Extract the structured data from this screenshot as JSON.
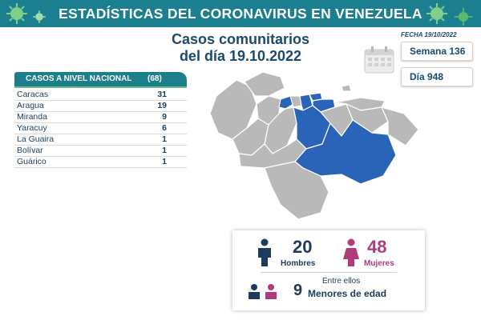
{
  "header": {
    "title": "ESTADÍSTICAS DEL CORONAVIRUS EN VENEZUELA"
  },
  "subtitle": {
    "line1": "Casos comunitarios",
    "line2": "del día 19.10.2022"
  },
  "fecha": "FECHA 19/10/2022",
  "semana": "Semana 136",
  "dia": "Día 948",
  "table": {
    "title": "CASOS A NIVEL NACIONAL",
    "total": "(68)",
    "rows": [
      {
        "name": "Caracas",
        "value": "31"
      },
      {
        "name": "Aragua",
        "value": "19"
      },
      {
        "name": "Miranda",
        "value": "9"
      },
      {
        "name": "Yaracuy",
        "value": "6"
      },
      {
        "name": "La Guaira",
        "value": "1"
      },
      {
        "name": "Bolívar",
        "value": "1"
      },
      {
        "name": "Guárico",
        "value": "1"
      }
    ]
  },
  "stats": {
    "hombres_value": "20",
    "hombres_label": "Hombres",
    "mujeres_value": "48",
    "mujeres_label": "Mujeres",
    "entre_ellos": "Entre ellos",
    "menores_value": "9",
    "menores_label": "Menores de edad"
  },
  "colors": {
    "header": "#1b7f90",
    "highlight": "#2a64b8",
    "map_gray": "#b9b9b9",
    "male": "#1d3b5a",
    "female": "#b03a7a"
  },
  "icons": [
    "virus-icon",
    "calendar-icon",
    "male-icon",
    "female-icon",
    "people-icon"
  ]
}
